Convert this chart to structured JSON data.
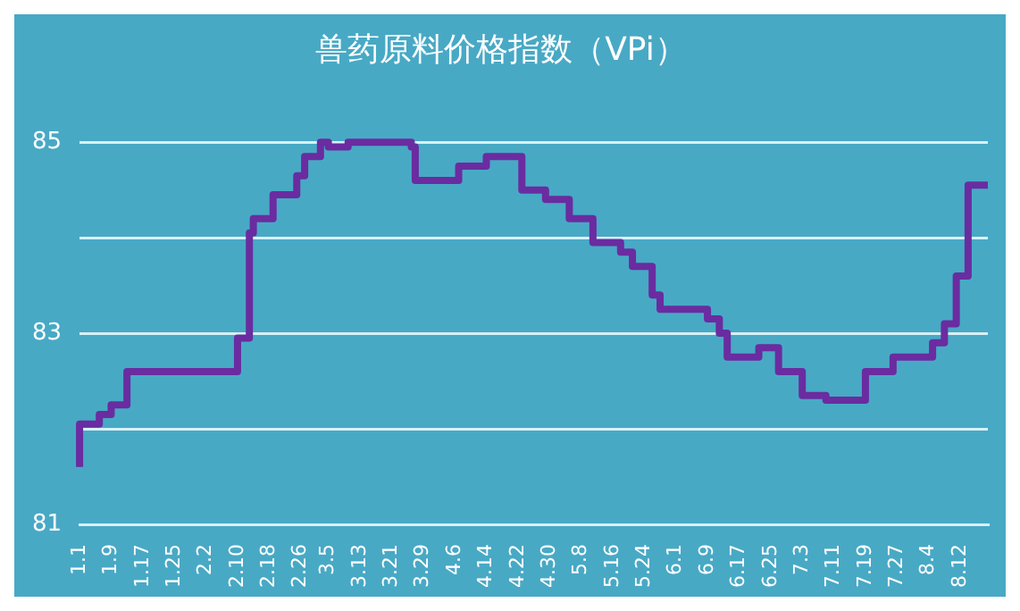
{
  "chart_data": {
    "type": "step",
    "title": "兽药原料价格指数（VPi）",
    "x": [
      "--01-01",
      "--01-06",
      "--01-09",
      "--01-13",
      "--02-10",
      "--02-13",
      "--02-14",
      "--02-19",
      "--02-25",
      "--02-27",
      "--03-03",
      "--03-05",
      "--03-10",
      "--03-26",
      "--03-27",
      "--04-07",
      "--04-14",
      "--04-18",
      "--04-23",
      "--04-29",
      "--05-05",
      "--05-11",
      "--05-18",
      "--05-21",
      "--05-26",
      "--05-28",
      "--06-09",
      "--06-12",
      "--06-14",
      "--06-22",
      "--06-27",
      "--07-03",
      "--07-09",
      "--07-19",
      "--07-26",
      "--08-05",
      "--08-08",
      "--08-11",
      "--08-14",
      "--08-17",
      "--08-19"
    ],
    "series": [
      {
        "color": "#6a2ca0",
        "values": [
          81.6,
          82.05,
          82.15,
          82.25,
          82.6,
          82.95,
          84.05,
          84.2,
          84.45,
          84.65,
          84.85,
          85.0,
          84.95,
          85.0,
          84.95,
          84.6,
          84.75,
          84.85,
          84.85,
          84.5,
          84.4,
          84.2,
          83.95,
          83.85,
          83.7,
          83.4,
          83.25,
          83.15,
          83.0,
          82.75,
          82.85,
          82.6,
          82.35,
          82.3,
          82.6,
          82.75,
          82.9,
          83.1,
          83.6,
          84.55,
          84.55
        ]
      }
    ],
    "xlim": [
      "--01-01",
      "--08-19"
    ],
    "xticks": [
      {
        "value": "--01-01",
        "label": "1.1"
      },
      {
        "value": "--01-09",
        "label": "1.9"
      },
      {
        "value": "--01-17",
        "label": "1.17"
      },
      {
        "value": "--01-25",
        "label": "1.25"
      },
      {
        "value": "--02-02",
        "label": "2.2"
      },
      {
        "value": "--02-10",
        "label": "2.10"
      },
      {
        "value": "--02-18",
        "label": "2.18"
      },
      {
        "value": "--02-26",
        "label": "2.26"
      },
      {
        "value": "--03-05",
        "label": "3.5"
      },
      {
        "value": "--03-13",
        "label": "3.13"
      },
      {
        "value": "--03-21",
        "label": "3.21"
      },
      {
        "value": "--03-29",
        "label": "3.29"
      },
      {
        "value": "--04-06",
        "label": "4.6"
      },
      {
        "value": "--04-14",
        "label": "4.14"
      },
      {
        "value": "--04-22",
        "label": "4.22"
      },
      {
        "value": "--04-30",
        "label": "4.30"
      },
      {
        "value": "--05-08",
        "label": "5.8"
      },
      {
        "value": "--05-16",
        "label": "5.16"
      },
      {
        "value": "--05-24",
        "label": "5.24"
      },
      {
        "value": "--06-01",
        "label": "6.1"
      },
      {
        "value": "--06-09",
        "label": "6.9"
      },
      {
        "value": "--06-17",
        "label": "6.17"
      },
      {
        "value": "--06-25",
        "label": "6.25"
      },
      {
        "value": "--07-03",
        "label": "7.3"
      },
      {
        "value": "--07-11",
        "label": "7.11"
      },
      {
        "value": "--07-19",
        "label": "7.19"
      },
      {
        "value": "--07-27",
        "label": "7.27"
      },
      {
        "value": "--08-04",
        "label": "8.4"
      },
      {
        "value": "--08-12",
        "label": "8.12"
      }
    ],
    "ylim": [
      81,
      85
    ],
    "yticks": [
      81,
      {
        "value": 82,
        "label": null
      },
      83,
      {
        "value": 84,
        "label": null
      },
      85
    ],
    "grid": "y",
    "legend": false,
    "marker": "none",
    "line_style": "solid"
  }
}
